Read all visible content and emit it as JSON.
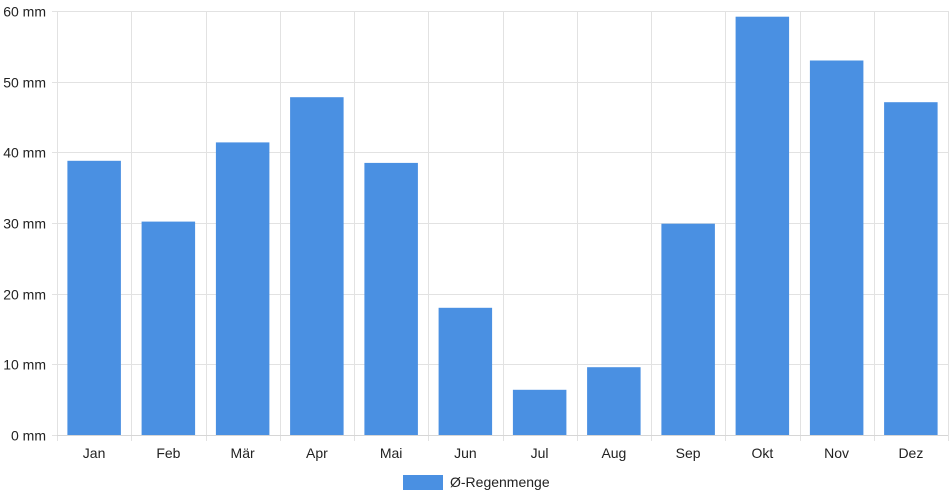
{
  "chart_data": {
    "type": "bar",
    "categories": [
      "Jan",
      "Feb",
      "Mär",
      "Apr",
      "Mai",
      "Jun",
      "Jul",
      "Aug",
      "Sep",
      "Okt",
      "Nov",
      "Dez"
    ],
    "series": [
      {
        "name": "Ø-Regenmenge",
        "values": [
          38.8,
          30.2,
          41.4,
          47.8,
          38.5,
          18.0,
          6.4,
          9.6,
          29.9,
          59.2,
          53.0,
          47.1
        ],
        "color": "#4a90e2"
      }
    ],
    "y_ticks": [
      0,
      10,
      20,
      30,
      40,
      50,
      60
    ],
    "y_unit": "mm",
    "ylim": [
      0,
      60
    ],
    "grid": true,
    "legend": "bottom-center"
  }
}
